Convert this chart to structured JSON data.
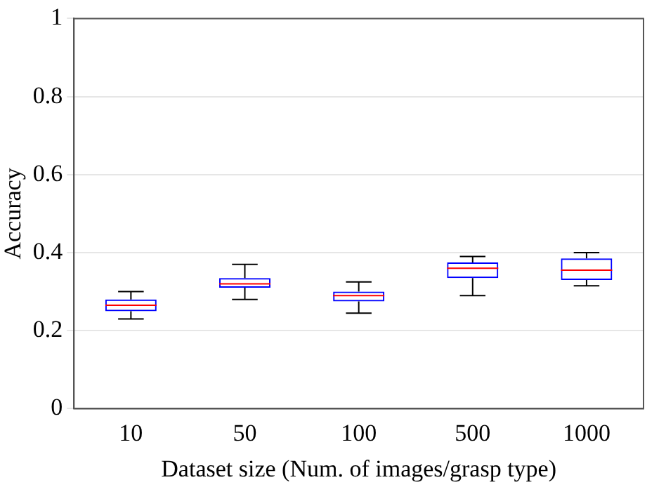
{
  "chart_data": {
    "type": "box",
    "xlabel": "Dataset size (Num. of images/grasp type)",
    "ylabel": "Accuracy",
    "categories": [
      "10",
      "50",
      "100",
      "500",
      "1000"
    ],
    "color": "#0000ff",
    "boxes": [
      {
        "low": 0.23,
        "q1": 0.25,
        "median": 0.265,
        "q3": 0.28,
        "high": 0.3
      },
      {
        "low": 0.28,
        "q1": 0.31,
        "median": 0.32,
        "q3": 0.335,
        "high": 0.37
      },
      {
        "low": 0.245,
        "q1": 0.275,
        "median": 0.29,
        "q3": 0.3,
        "high": 0.325
      },
      {
        "low": 0.29,
        "q1": 0.335,
        "median": 0.36,
        "q3": 0.375,
        "high": 0.39
      },
      {
        "low": 0.315,
        "q1": 0.33,
        "median": 0.355,
        "q3": 0.385,
        "high": 0.4
      }
    ],
    "ylim": [
      0,
      1
    ],
    "yticks": [
      0,
      0.2,
      0.4,
      0.6,
      0.8,
      1
    ],
    "grid": "y",
    "legend": false
  }
}
